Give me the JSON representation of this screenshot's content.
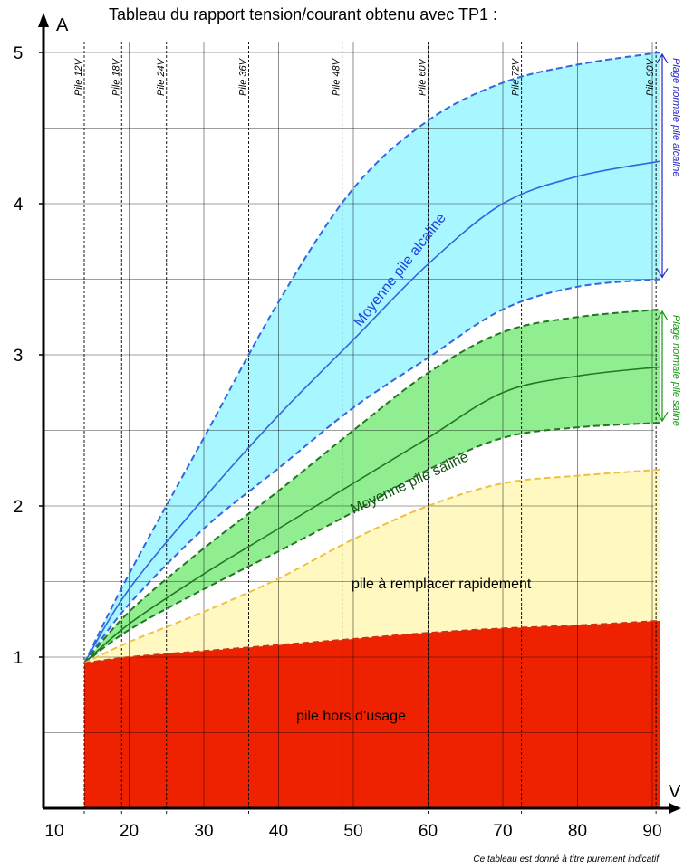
{
  "title": "Tableau du rapport tension/courant obtenu avec TP1 :",
  "note": "Ce tableau est donné à titre purement indicatif",
  "chart_data": {
    "type": "area",
    "title": "Tableau du rapport tension/courant obtenu avec TP1 :",
    "xlabel": "V",
    "ylabel": "A",
    "xlim": [
      10,
      92
    ],
    "ylim": [
      0,
      5
    ],
    "x_ticks": [
      10,
      20,
      30,
      40,
      50,
      60,
      70,
      80,
      90
    ],
    "y_ticks": [
      1,
      2,
      3,
      4,
      5
    ],
    "grid": true,
    "battery_voltages": [
      {
        "label": "Pile 12V",
        "x": 14
      },
      {
        "label": "Pile 18V",
        "x": 19
      },
      {
        "label": "Pile 24V",
        "x": 25
      },
      {
        "label": "Pile 36V",
        "x": 36
      },
      {
        "label": "Pile 48V",
        "x": 48.5
      },
      {
        "label": "Pile 60V",
        "x": 60
      },
      {
        "label": "Pile 72V",
        "x": 72.5
      },
      {
        "label": "Pile 90V",
        "x": 90.5
      }
    ],
    "x": [
      14,
      20,
      30,
      40,
      50,
      60,
      70,
      80,
      91
    ],
    "series": [
      {
        "name": "",
        "role": "alcaline-max",
        "color": "#3366dd",
        "dash": true,
        "values": [
          0.96,
          1.55,
          2.45,
          3.35,
          4.1,
          4.55,
          4.8,
          4.92,
          5.0
        ]
      },
      {
        "name": "Moyenne pile alcaline",
        "role": "alcaline-mean",
        "color": "#3366dd",
        "dash": false,
        "values": [
          0.96,
          1.45,
          2.05,
          2.6,
          3.1,
          3.6,
          4.0,
          4.18,
          4.28
        ]
      },
      {
        "name": "",
        "role": "alcaline-min",
        "color": "#3366dd",
        "dash": true,
        "values": [
          0.96,
          1.35,
          1.85,
          2.25,
          2.65,
          2.98,
          3.3,
          3.45,
          3.5
        ]
      },
      {
        "name": "",
        "role": "saline-max",
        "color": "#227722",
        "dash": true,
        "values": [
          0.96,
          1.3,
          1.72,
          2.1,
          2.5,
          2.88,
          3.15,
          3.25,
          3.3
        ]
      },
      {
        "name": "Moyenne pile saline",
        "role": "saline-mean",
        "color": "#227722",
        "dash": false,
        "values": [
          0.96,
          1.22,
          1.55,
          1.85,
          2.15,
          2.45,
          2.75,
          2.86,
          2.92
        ]
      },
      {
        "name": "",
        "role": "saline-min",
        "color": "#227722",
        "dash": true,
        "values": [
          0.96,
          1.18,
          1.45,
          1.7,
          1.96,
          2.24,
          2.45,
          2.52,
          2.55
        ]
      },
      {
        "name": "",
        "role": "remplacer-max",
        "color": "#f0c040",
        "dash": true,
        "values": [
          0.96,
          1.1,
          1.3,
          1.52,
          1.78,
          2.0,
          2.15,
          2.2,
          2.24
        ]
      },
      {
        "name": "",
        "role": "hors-usage-max",
        "color": "#d03010",
        "dash": true,
        "values": [
          0.96,
          1.0,
          1.04,
          1.08,
          1.12,
          1.16,
          1.19,
          1.21,
          1.24
        ]
      }
    ],
    "fills": [
      {
        "between": [
          "alcaline-min",
          "alcaline-max"
        ],
        "color": "#a8f6ff"
      },
      {
        "between": [
          "saline-min",
          "saline-max"
        ],
        "color": "#90ee90"
      },
      {
        "between": [
          "hors-usage-max",
          "remplacer-max"
        ],
        "color": "#fff8c0"
      },
      {
        "between": [
          "axis",
          "hors-usage-max"
        ],
        "color": "#ee2200"
      }
    ],
    "region_labels": [
      {
        "text": "pile à remplacer rapidement"
      },
      {
        "text": "pile hors d’usage"
      }
    ],
    "range_labels": [
      {
        "text": "Plage normale pile alcaline",
        "color": "#2222cc",
        "from": 3.5,
        "to": 5.0
      },
      {
        "text": "Plage normale pile saline",
        "color": "#119911",
        "from": 2.55,
        "to": 3.3
      }
    ]
  }
}
